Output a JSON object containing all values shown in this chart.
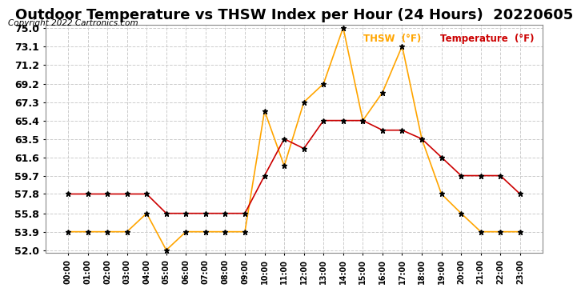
{
  "title": "Outdoor Temperature vs THSW Index per Hour (24 Hours)  20220605",
  "copyright": "Copyright 2022 Cartronics.com",
  "legend_thsw": "THSW  (°F)",
  "legend_temp": "Temperature  (°F)",
  "hours": [
    "00:00",
    "01:00",
    "02:00",
    "03:00",
    "04:00",
    "05:00",
    "06:00",
    "07:00",
    "08:00",
    "09:00",
    "10:00",
    "11:00",
    "12:00",
    "13:00",
    "14:00",
    "15:00",
    "16:00",
    "17:00",
    "18:00",
    "19:00",
    "20:00",
    "21:00",
    "22:00",
    "23:00"
  ],
  "temperature": [
    57.8,
    57.8,
    57.8,
    57.8,
    57.8,
    55.8,
    55.8,
    55.8,
    55.8,
    55.8,
    59.7,
    63.5,
    62.5,
    65.4,
    65.4,
    65.4,
    64.4,
    64.4,
    63.5,
    61.6,
    59.7,
    59.7,
    59.7,
    57.8
  ],
  "thsw": [
    53.9,
    53.9,
    53.9,
    53.9,
    55.8,
    52.0,
    53.9,
    53.9,
    53.9,
    53.9,
    66.4,
    60.7,
    67.3,
    69.2,
    75.0,
    65.4,
    68.3,
    73.1,
    63.5,
    57.8,
    55.8,
    53.9,
    53.9,
    53.9
  ],
  "ylim": [
    52.0,
    75.0
  ],
  "yticks": [
    52.0,
    53.9,
    55.8,
    57.8,
    59.7,
    61.6,
    63.5,
    65.4,
    67.3,
    69.2,
    71.2,
    73.1,
    75.0
  ],
  "color_thsw": "#FFA500",
  "color_temp": "#CC0000",
  "color_grid": "#CCCCCC",
  "background_color": "#FFFFFF",
  "title_fontsize": 13,
  "axis_fontsize": 9
}
